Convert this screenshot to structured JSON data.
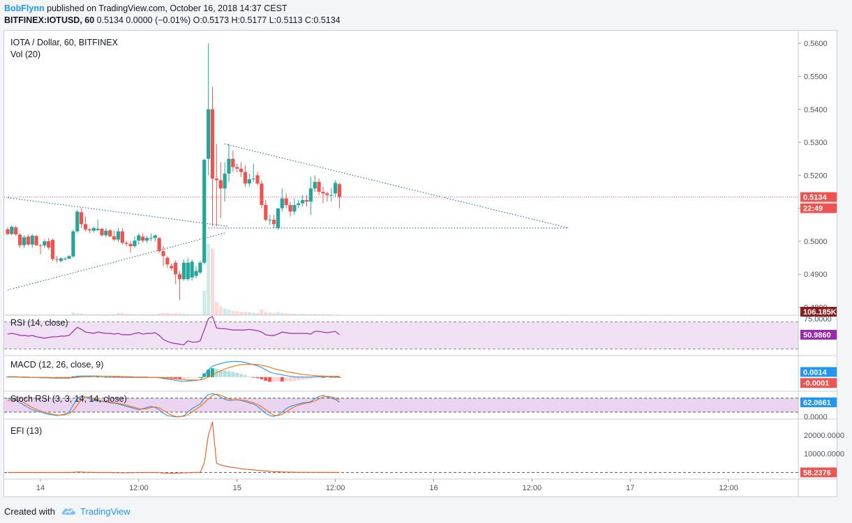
{
  "header": {
    "user": "BobFlynn",
    "published": "published on TradingView.com, October 16, 2018 14:37 CEST",
    "symbol": "BITFINEX:IOTUSD, 60",
    "quote": "0.5134 0.0000 (−0.01%) O:0.5173 H:0.5177 L:0.5113 C:0.5134"
  },
  "footer": {
    "created_with": "Created with",
    "brand": "TradingView"
  },
  "colors": {
    "up": "#26a69a",
    "down": "#ef5350",
    "rsi": "#9c27b0",
    "macd": "#2196f3",
    "signal": "#ff6d00",
    "efi": "#f4511e",
    "trend": "#3d6ab0"
  },
  "chart_data": [
    {
      "type": "candlestick",
      "title": "IOTA / Dollar, 60, BITFINEX",
      "subtitle": "Vol (20)",
      "ylim": [
        0.478,
        0.563
      ],
      "yticks": [
        "0.5600",
        "0.5500",
        "0.5400",
        "0.5300",
        "0.5200",
        "0.5100",
        "0.5000",
        "0.4900",
        "0.4800"
      ],
      "ytick_values": [
        0.56,
        0.55,
        0.54,
        0.53,
        0.52,
        0.51,
        0.5,
        0.49,
        0.48
      ],
      "xticks": [
        "14",
        "12:00",
        "15",
        "12:00",
        "16",
        "12:00",
        "17",
        "12:00"
      ],
      "xtick_values": [
        8,
        32,
        56,
        80,
        104,
        128,
        152,
        176
      ],
      "last_price_label": "0.5134",
      "last_price": 0.5134,
      "countdown_label": "22:49",
      "volume_label": "106.185K",
      "candles": [
        [
          0.5036,
          0.5043,
          0.5018,
          0.5022
        ],
        [
          0.5022,
          0.5048,
          0.5018,
          0.5044
        ],
        [
          0.5042,
          0.5046,
          0.5017,
          0.5021
        ],
        [
          0.502,
          0.5024,
          0.498,
          0.4988
        ],
        [
          0.4988,
          0.5018,
          0.498,
          0.5012
        ],
        [
          0.5014,
          0.502,
          0.4986,
          0.499
        ],
        [
          0.499,
          0.5022,
          0.498,
          0.5017
        ],
        [
          0.5016,
          0.5019,
          0.4984,
          0.4988
        ],
        [
          0.4988,
          0.4992,
          0.496,
          0.4987
        ],
        [
          0.4987,
          0.5006,
          0.498,
          0.5
        ],
        [
          0.5,
          0.501,
          0.4974,
          0.4981
        ],
        [
          0.5004,
          0.5008,
          0.494,
          0.4946
        ],
        [
          0.4946,
          0.4955,
          0.4935,
          0.4944
        ],
        [
          0.494,
          0.4952,
          0.4936,
          0.4948
        ],
        [
          0.4946,
          0.4952,
          0.4942,
          0.4947
        ],
        [
          0.4947,
          0.4958,
          0.4945,
          0.4955
        ],
        [
          0.4954,
          0.5035,
          0.495,
          0.503
        ],
        [
          0.503,
          0.5095,
          0.5025,
          0.509
        ],
        [
          0.5088,
          0.51,
          0.504,
          0.5052
        ],
        [
          0.5052,
          0.5074,
          0.503,
          0.5036
        ],
        [
          0.5036,
          0.504,
          0.5025,
          0.5033
        ],
        [
          0.5032,
          0.5045,
          0.5026,
          0.504
        ],
        [
          0.5034,
          0.5066,
          0.503,
          0.5038
        ],
        [
          0.5038,
          0.504,
          0.5014,
          0.5018
        ],
        [
          0.5018,
          0.504,
          0.5012,
          0.5032
        ],
        [
          0.5033,
          0.5036,
          0.5012,
          0.5015
        ],
        [
          0.5015,
          0.5032,
          0.5,
          0.5005
        ],
        [
          0.5005,
          0.504,
          0.4998,
          0.503
        ],
        [
          0.503,
          0.504,
          0.499,
          0.4995
        ],
        [
          0.4995,
          0.5,
          0.4985,
          0.4992
        ],
        [
          0.4992,
          0.5,
          0.4965,
          0.4985
        ],
        [
          0.4985,
          0.5015,
          0.498,
          0.5002
        ],
        [
          0.5002,
          0.5025,
          0.499,
          0.5018
        ],
        [
          0.5014,
          0.5024,
          0.4995,
          0.5002
        ],
        [
          0.5002,
          0.5016,
          0.4995,
          0.501
        ],
        [
          0.501,
          0.5024,
          0.5,
          0.501
        ],
        [
          0.501,
          0.502,
          0.5,
          0.5018
        ],
        [
          0.501,
          0.5012,
          0.4965,
          0.497
        ],
        [
          0.497,
          0.4985,
          0.4925,
          0.4955
        ],
        [
          0.495,
          0.4955,
          0.492,
          0.493
        ],
        [
          0.4925,
          0.4932,
          0.491,
          0.4918
        ],
        [
          0.4935,
          0.4942,
          0.487,
          0.49
        ],
        [
          0.49,
          0.491,
          0.4822,
          0.4885
        ],
        [
          0.4885,
          0.4945,
          0.488,
          0.4935
        ],
        [
          0.4885,
          0.495,
          0.488,
          0.4935
        ],
        [
          0.489,
          0.4945,
          0.488,
          0.4938
        ],
        [
          0.4895,
          0.4925,
          0.4888,
          0.491
        ],
        [
          0.4905,
          0.494,
          0.49,
          0.4935
        ],
        [
          0.4935,
          0.525,
          0.493,
          0.5247
        ],
        [
          0.525,
          0.56,
          0.52,
          0.54
        ],
        [
          0.54,
          0.5468,
          0.5045,
          0.519
        ],
        [
          0.519,
          0.5295,
          0.5045,
          0.5185
        ],
        [
          0.5185,
          0.524,
          0.507,
          0.516
        ],
        [
          0.516,
          0.524,
          0.512,
          0.5205
        ],
        [
          0.5205,
          0.5295,
          0.518,
          0.525
        ],
        [
          0.525,
          0.5275,
          0.521,
          0.5225
        ],
        [
          0.5225,
          0.5235,
          0.521,
          0.522
        ],
        [
          0.522,
          0.524,
          0.5195,
          0.521
        ],
        [
          0.521,
          0.523,
          0.5165,
          0.5175
        ],
        [
          0.5175,
          0.5205,
          0.5165,
          0.5188
        ],
        [
          0.5188,
          0.5235,
          0.518,
          0.519
        ],
        [
          0.52,
          0.521,
          0.517,
          0.5175
        ],
        [
          0.5175,
          0.5185,
          0.51,
          0.511
        ],
        [
          0.511,
          0.5125,
          0.506,
          0.5065
        ],
        [
          0.5065,
          0.508,
          0.505,
          0.5065
        ],
        [
          0.5065,
          0.508,
          0.504,
          0.5052
        ],
        [
          0.504,
          0.51,
          0.5035,
          0.51
        ],
        [
          0.51,
          0.516,
          0.509,
          0.513
        ],
        [
          0.513,
          0.5145,
          0.51,
          0.511
        ],
        [
          0.511,
          0.512,
          0.5075,
          0.509
        ],
        [
          0.509,
          0.513,
          0.508,
          0.511
        ],
        [
          0.511,
          0.5125,
          0.51,
          0.5115
        ],
        [
          0.5115,
          0.514,
          0.5105,
          0.5125
        ],
        [
          0.5125,
          0.514,
          0.5105,
          0.512
        ],
        [
          0.512,
          0.5195,
          0.508,
          0.516
        ],
        [
          0.516,
          0.52,
          0.515,
          0.518
        ],
        [
          0.518,
          0.519,
          0.514,
          0.515
        ],
        [
          0.515,
          0.5165,
          0.5115,
          0.5145
        ],
        [
          0.5145,
          0.515,
          0.512,
          0.514
        ],
        [
          0.514,
          0.516,
          0.512,
          0.514
        ],
        [
          0.5145,
          0.5185,
          0.5135,
          0.5177
        ],
        [
          0.5173,
          0.5177,
          0.51,
          0.5134
        ]
      ],
      "volume": [
        0.3,
        0.2,
        0.2,
        0.3,
        0.2,
        0.3,
        0.2,
        0.2,
        0.3,
        0.2,
        0.2,
        0.3,
        0.2,
        0.2,
        0.2,
        0.2,
        1.2,
        0.9,
        0.7,
        0.5,
        0.4,
        0.3,
        0.4,
        0.3,
        0.3,
        0.3,
        0.5,
        0.9,
        1.0,
        0.6,
        0.5,
        0.4,
        0.3,
        0.4,
        0.3,
        0.3,
        0.3,
        0.8,
        0.9,
        1.0,
        0.7,
        0.9,
        0.8,
        0.6,
        0.5,
        0.4,
        0.3,
        0.4,
        11.0,
        32.0,
        30.0,
        6.0,
        4.0,
        3.0,
        2.5,
        2.0,
        1.8,
        1.5,
        1.5,
        1.5,
        1.2,
        1.0,
        2.5,
        1.5,
        1.2,
        1.0,
        1.5,
        1.0,
        0.8,
        0.6,
        0.6,
        0.5,
        0.6,
        0.4,
        0.5,
        0.5,
        0.4,
        0.4,
        0.3,
        0.3,
        0.2,
        0.2
      ],
      "trendlines": [
        {
          "x": [
            0,
            54
          ],
          "y": [
            0.5132,
            0.5045
          ]
        },
        {
          "x": [
            0,
            53
          ],
          "y": [
            0.4852,
            0.5025
          ]
        },
        {
          "x": [
            53,
            137
          ],
          "y": [
            0.5295,
            0.504
          ]
        },
        {
          "x": [
            49,
            137
          ],
          "y": [
            0.504,
            0.504
          ]
        }
      ]
    },
    {
      "type": "line",
      "title": "RSI (14, close)",
      "ylim": [
        20,
        80
      ],
      "band": [
        30,
        70
      ],
      "ytick_label": "75.0000",
      "ytick_value": 75,
      "last_label": "50.9860",
      "last_value": 50.986,
      "values": [
        52,
        53,
        52,
        50,
        50,
        49,
        50,
        48,
        47,
        46,
        47,
        48,
        48,
        49,
        49,
        50,
        56,
        62,
        59,
        55,
        54,
        53,
        55,
        54,
        53,
        53,
        52,
        53,
        51,
        51,
        51,
        53,
        54,
        52,
        53,
        53,
        54,
        50,
        44,
        41,
        39,
        38,
        37,
        36,
        42,
        40,
        40,
        42,
        58,
        75,
        78,
        61,
        60,
        60,
        59,
        58,
        58,
        58,
        58,
        59,
        58,
        57,
        55,
        51,
        50,
        50,
        52,
        55,
        54,
        53,
        53,
        53,
        53,
        53,
        52,
        56,
        56,
        55,
        54,
        55,
        56,
        51
      ]
    },
    {
      "type": "line",
      "title": "MACD (12, 26, close, 9)",
      "ylim": [
        -0.0035,
        0.0055
      ],
      "ytick_label": "0.0014",
      "ytick_value": 0.0014,
      "last_label": "-0.0001",
      "last_value": -0.0001,
      "macd": [
        0.0001,
        0.0001,
        0.0001,
        0.0,
        0.0,
        -0.0001,
        -0.0001,
        -0.0001,
        -0.0002,
        -0.0002,
        -0.0002,
        -0.0003,
        -0.0003,
        -0.0003,
        -0.0003,
        -0.0003,
        0.0,
        0.0002,
        0.0003,
        0.0003,
        0.0003,
        0.0003,
        0.0003,
        0.0002,
        0.0002,
        0.0002,
        0.0001,
        0.0001,
        0.0,
        0.0,
        -0.0001,
        -0.0001,
        -0.0001,
        -0.0001,
        -0.0001,
        -0.0001,
        -0.0001,
        -0.0002,
        -0.0004,
        -0.0006,
        -0.0007,
        -0.0009,
        -0.0011,
        -0.0012,
        -0.0011,
        -0.001,
        -0.0009,
        -0.0008,
        0.0005,
        0.002,
        0.003,
        0.0034,
        0.0037,
        0.004,
        0.0042,
        0.0043,
        0.0043,
        0.0042,
        0.004,
        0.0037,
        0.0034,
        0.0031,
        0.0026,
        0.002,
        0.0014,
        0.001,
        0.0008,
        0.0006,
        0.0004,
        0.0002,
        0.0001,
        0.0,
        0.0,
        0.0,
        0.0,
        0.0001,
        0.0001,
        0.0001,
        0.0001,
        0.0001,
        0.0001,
        0.0
      ],
      "signal": [
        0.0,
        0.0,
        0.0,
        0.0,
        0.0,
        0.0,
        -0.0001,
        -0.0001,
        -0.0001,
        -0.0001,
        -0.0001,
        -0.0002,
        -0.0002,
        -0.0002,
        -0.0002,
        -0.0002,
        -0.0002,
        -0.0001,
        0.0,
        0.0001,
        0.0001,
        0.0002,
        0.0002,
        0.0002,
        0.0002,
        0.0002,
        0.0002,
        0.0002,
        0.0001,
        0.0001,
        0.0001,
        0.0,
        0.0,
        0.0,
        0.0,
        -0.0001,
        -0.0001,
        -0.0001,
        -0.0002,
        -0.0003,
        -0.0004,
        -0.0005,
        -0.0006,
        -0.0007,
        -0.0008,
        -0.0008,
        -0.0008,
        -0.0008,
        -0.0005,
        0.0,
        0.0006,
        0.0012,
        0.0017,
        0.0022,
        0.0026,
        0.0029,
        0.0032,
        0.0034,
        0.0035,
        0.0035,
        0.0035,
        0.0034,
        0.0032,
        0.003,
        0.0027,
        0.0023,
        0.002,
        0.0018,
        0.0015,
        0.0013,
        0.0011,
        0.0009,
        0.0007,
        0.0006,
        0.0005,
        0.0004,
        0.0003,
        0.0003,
        0.0002,
        0.0002,
        0.0002,
        0.0002
      ]
    },
    {
      "type": "line",
      "title": "Stoch RSI (3, 3, 14, 14, close)",
      "ylim": [
        -10,
        110
      ],
      "band": [
        20,
        80
      ],
      "ytick_label": "0.0000",
      "ytick_value": 0,
      "last_label": "62.0661",
      "last_value": 62.0661,
      "k": [
        80,
        75,
        70,
        60,
        50,
        40,
        30,
        25,
        20,
        15,
        10,
        8,
        5,
        8,
        12,
        20,
        50,
        80,
        90,
        85,
        78,
        70,
        68,
        66,
        64,
        60,
        58,
        55,
        50,
        45,
        40,
        35,
        30,
        35,
        40,
        45,
        40,
        30,
        15,
        5,
        2,
        0,
        0,
        5,
        20,
        35,
        45,
        55,
        80,
        95,
        100,
        95,
        85,
        75,
        70,
        72,
        74,
        70,
        65,
        60,
        55,
        45,
        30,
        15,
        5,
        2,
        8,
        20,
        35,
        45,
        50,
        55,
        60,
        62,
        65,
        78,
        88,
        92,
        85,
        80,
        75,
        62
      ],
      "d": [
        70,
        72,
        73,
        68,
        60,
        50,
        40,
        32,
        25,
        20,
        15,
        11,
        8,
        7,
        8,
        13,
        27,
        50,
        73,
        85,
        84,
        78,
        72,
        68,
        66,
        63,
        60,
        58,
        54,
        50,
        45,
        40,
        35,
        33,
        35,
        40,
        42,
        38,
        28,
        17,
        7,
        2,
        1,
        2,
        8,
        20,
        33,
        45,
        60,
        77,
        92,
        97,
        93,
        85,
        77,
        72,
        72,
        72,
        70,
        65,
        60,
        53,
        43,
        30,
        17,
        7,
        5,
        10,
        21,
        33,
        43,
        50,
        55,
        59,
        62,
        68,
        77,
        86,
        88,
        86,
        80,
        72
      ]
    },
    {
      "type": "line",
      "title": "EFI (13)",
      "ylim": [
        -3500,
        28500
      ],
      "ytick_labels": [
        "20000.0000",
        "10000.0000"
      ],
      "ytick_values": [
        20000,
        10000
      ],
      "last_label": "58.2376",
      "last_value": 58.2376,
      "values": [
        0,
        0,
        0,
        0,
        0,
        0,
        0,
        0,
        0,
        0,
        0,
        0,
        0,
        0,
        0,
        0,
        150,
        300,
        250,
        150,
        100,
        50,
        30,
        20,
        0,
        0,
        -50,
        -100,
        -150,
        -100,
        -80,
        -50,
        -30,
        -20,
        0,
        0,
        0,
        -100,
        -250,
        -400,
        -350,
        -300,
        -250,
        -150,
        -100,
        -50,
        0,
        0,
        5000,
        20000,
        27000,
        5000,
        4000,
        3500,
        3000,
        2700,
        2400,
        2000,
        1800,
        1600,
        1400,
        1200,
        1000,
        800,
        600,
        500,
        400,
        300,
        250,
        200,
        150,
        120,
        100,
        90,
        80,
        80,
        70,
        60,
        60,
        60,
        60,
        58
      ]
    }
  ],
  "time_axis": {
    "last_candle_x": 138.7,
    "x_range": [
      -1,
      193
    ]
  }
}
